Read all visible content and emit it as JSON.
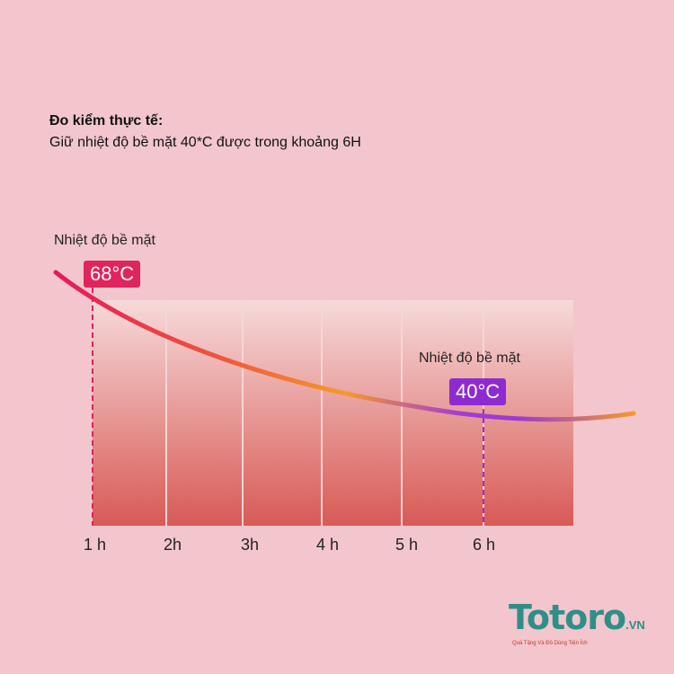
{
  "header": {
    "title": "Đo kiểm thực tế:",
    "subtitle": "Giữ nhiệt độ bề mặt 40*C được trong khoảng 6H"
  },
  "chart_data": {
    "type": "line",
    "x_ticks": [
      "1 h",
      "2h",
      "3h",
      "4 h",
      "5 h",
      "6 h"
    ],
    "annotations": [
      {
        "x": "1 h",
        "label": "Nhiệt độ bề mặt",
        "value": "68°C",
        "color": "#e0245e"
      },
      {
        "x": "6 h",
        "label": "Nhiệt độ bề mặt",
        "value": "40°C",
        "color": "#8e2bd0"
      }
    ],
    "points": [
      {
        "x": 1,
        "y": 68
      },
      {
        "x": 6,
        "y": 40
      }
    ],
    "grid": true
  },
  "logo": {
    "name": "Totoro",
    "suffix": ".VN",
    "tagline": "Quà Tặng Và Đồ Dùng Tiện Ích"
  }
}
